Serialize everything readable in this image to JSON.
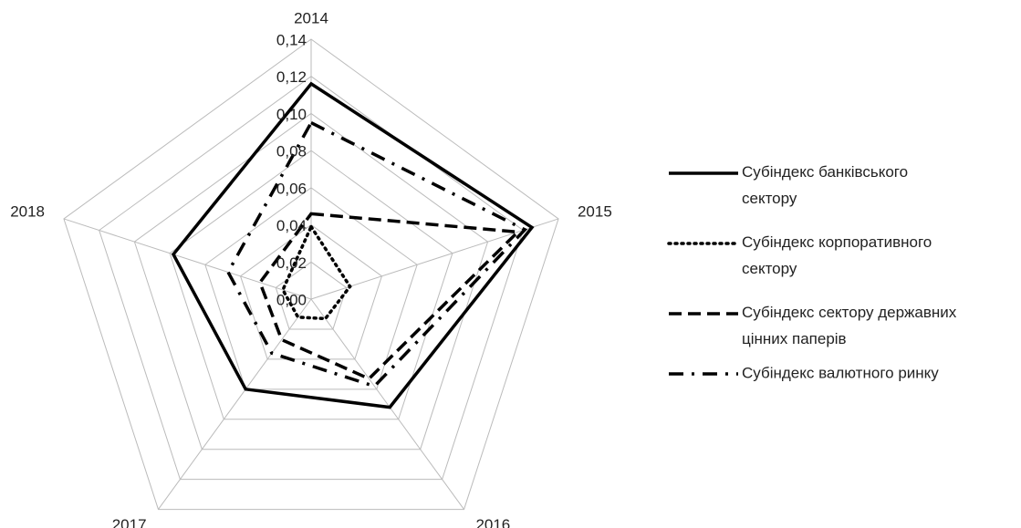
{
  "chart_data": {
    "type": "radar",
    "categories": [
      "2014",
      "2015",
      "2016",
      "2017",
      "2018"
    ],
    "ylim": [
      0,
      0.14
    ],
    "yticks": [
      {
        "value": 0,
        "label": "0,00"
      },
      {
        "value": 0.02,
        "label": "0,02"
      },
      {
        "value": 0.04,
        "label": "0,04"
      },
      {
        "value": 0.06,
        "label": "0,06"
      },
      {
        "value": 0.08,
        "label": "0,08"
      },
      {
        "value": 0.1,
        "label": "0,10"
      },
      {
        "value": 0.12,
        "label": "0,12"
      },
      {
        "value": 0.14,
        "label": "0,14"
      }
    ],
    "grid": true,
    "legend": "right",
    "series": [
      {
        "name": "Субіндекс банківського сектору",
        "color": "#000000",
        "dash": "solid",
        "values": [
          0.116,
          0.125,
          0.072,
          0.06,
          0.078
        ]
      },
      {
        "name": "Субіндекс корпоративного сектору",
        "color": "#000000",
        "dash": "dotted",
        "values": [
          0.039,
          0.022,
          0.013,
          0.012,
          0.016
        ]
      },
      {
        "name": "Субіндекс сектору державних цінних паперів",
        "color": "#000000",
        "dash": "dashed",
        "values": [
          0.046,
          0.117,
          0.053,
          0.027,
          0.029
        ]
      },
      {
        "name": "Субіндекс валютного ринку",
        "color": "#000000",
        "dash": "dashdot",
        "values": [
          0.095,
          0.121,
          0.058,
          0.036,
          0.047
        ]
      }
    ]
  }
}
